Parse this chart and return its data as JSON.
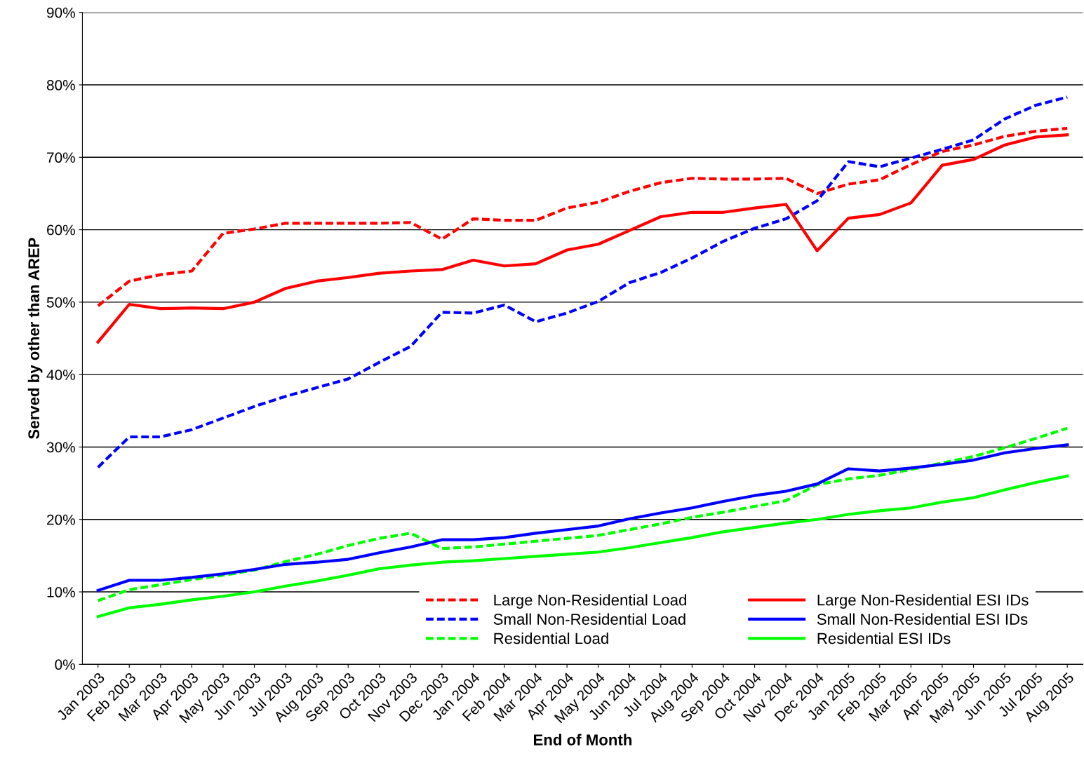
{
  "chart_data": {
    "type": "line",
    "xlabel": "End of Month",
    "ylabel": "Served by other than AREP",
    "categories": [
      "Jan 2003",
      "Feb 2003",
      "Mar 2003",
      "Apr 2003",
      "May 2003",
      "Jun 2003",
      "Jul 2003",
      "Aug 2003",
      "Sep 2003",
      "Oct 2003",
      "Nov 2003",
      "Dec 2003",
      "Jan 2004",
      "Feb 2004",
      "Mar 2004",
      "Apr 2004",
      "May 2004",
      "Jun 2004",
      "Jul 2004",
      "Aug 2004",
      "Sep 2004",
      "Oct 2004",
      "Nov 2004",
      "Dec 2004",
      "Jan 2005",
      "Feb 2005",
      "Mar 2005",
      "Apr 2005",
      "May 2005",
      "Jun 2005",
      "Jul 2005",
      "Aug 2005"
    ],
    "ylim": [
      0,
      90
    ],
    "yticks": [
      {
        "value": 0,
        "label": "0%"
      },
      {
        "value": 10,
        "label": "10%"
      },
      {
        "value": 20,
        "label": "20%"
      },
      {
        "value": 30,
        "label": "30%"
      },
      {
        "value": 40,
        "label": "40%"
      },
      {
        "value": 50,
        "label": "50%"
      },
      {
        "value": 60,
        "label": "60%"
      },
      {
        "value": 70,
        "label": "70%"
      },
      {
        "value": 80,
        "label": "80%"
      },
      {
        "value": 90,
        "label": "90%"
      }
    ],
    "grid": "y",
    "legend": "bottom right",
    "marker": "none",
    "series": [
      {
        "name": "Large Non-Residential Load",
        "color": "#ff0000",
        "line_style": "dashed",
        "values": [
          49.5,
          52.9,
          53.8,
          54.3,
          59.5,
          60.1,
          60.9,
          60.9,
          60.9,
          60.9,
          61.0,
          58.7,
          61.5,
          61.3,
          61.3,
          63.0,
          63.8,
          65.3,
          66.5,
          67.1,
          67.0,
          67.0,
          67.1,
          65.0,
          66.3,
          66.9,
          69.0,
          70.8,
          71.7,
          72.9,
          73.6,
          74.0
        ]
      },
      {
        "name": "Small Non-Residential Load",
        "color": "#0000ff",
        "line_style": "dashed",
        "values": [
          27.2,
          31.4,
          31.4,
          32.4,
          34.0,
          35.6,
          37.0,
          38.2,
          39.4,
          41.7,
          43.9,
          48.6,
          48.5,
          49.6,
          47.3,
          48.5,
          50.1,
          52.7,
          54.1,
          56.1,
          58.4,
          60.2,
          61.5,
          64.0,
          69.4,
          68.7,
          69.9,
          71.1,
          72.4,
          75.3,
          77.2,
          78.3
        ]
      },
      {
        "name": "Residential Load",
        "color": "#00ff00",
        "line_style": "dashed",
        "values": [
          8.8,
          10.3,
          11.0,
          11.7,
          12.3,
          13.0,
          14.2,
          15.2,
          16.4,
          17.4,
          18.1,
          16.0,
          16.2,
          16.6,
          17.0,
          17.4,
          17.8,
          18.6,
          19.4,
          20.3,
          21.0,
          21.8,
          22.6,
          24.8,
          25.6,
          26.1,
          26.9,
          27.8,
          28.7,
          29.9,
          31.2,
          32.6
        ]
      },
      {
        "name": "Large Non-Residential ESI IDs",
        "color": "#ff0000",
        "line_style": "solid",
        "values": [
          44.5,
          49.7,
          49.1,
          49.2,
          49.1,
          50.0,
          51.9,
          52.9,
          53.4,
          54.0,
          54.3,
          54.5,
          55.8,
          55.0,
          55.3,
          57.2,
          58.0,
          59.9,
          61.8,
          62.4,
          62.4,
          63.0,
          63.5,
          57.1,
          61.6,
          62.1,
          63.7,
          68.9,
          69.7,
          71.7,
          72.8,
          73.1
        ]
      },
      {
        "name": "Small Non-Residential ESI IDs",
        "color": "#0000ff",
        "line_style": "solid",
        "values": [
          10.2,
          11.6,
          11.6,
          12.0,
          12.5,
          13.1,
          13.8,
          14.1,
          14.5,
          15.4,
          16.2,
          17.2,
          17.2,
          17.5,
          18.1,
          18.6,
          19.1,
          20.1,
          20.9,
          21.6,
          22.5,
          23.3,
          23.9,
          24.9,
          27.0,
          26.7,
          27.1,
          27.6,
          28.2,
          29.2,
          29.8,
          30.3
        ]
      },
      {
        "name": "Residential ESI IDs",
        "color": "#00ff00",
        "line_style": "solid",
        "values": [
          6.6,
          7.8,
          8.3,
          8.9,
          9.4,
          10.0,
          10.8,
          11.5,
          12.3,
          13.2,
          13.7,
          14.1,
          14.3,
          14.6,
          14.9,
          15.2,
          15.5,
          16.1,
          16.8,
          17.5,
          18.3,
          18.9,
          19.5,
          20.0,
          20.7,
          21.2,
          21.6,
          22.4,
          23.0,
          24.1,
          25.1,
          26.0
        ]
      }
    ]
  }
}
